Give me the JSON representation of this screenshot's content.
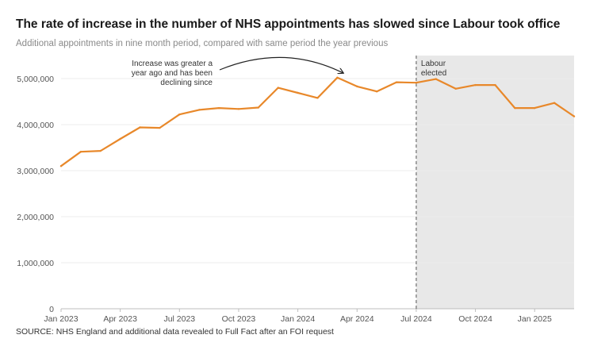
{
  "chart_data": {
    "type": "line",
    "title": "The rate of increase in the number of NHS appointments has slowed since Labour took office",
    "subtitle": "Additional appointments in nine month period, compared with same period the year previous",
    "source": "SOURCE: NHS England and additional data revealed to Full Fact after an FOI request",
    "x": [
      "2023-01",
      "2023-02",
      "2023-03",
      "2023-04",
      "2023-05",
      "2023-06",
      "2023-07",
      "2023-08",
      "2023-09",
      "2023-10",
      "2023-11",
      "2023-12",
      "2024-01",
      "2024-02",
      "2024-03",
      "2024-04",
      "2024-05",
      "2024-06",
      "2024-07",
      "2024-08",
      "2024-09",
      "2024-10",
      "2024-11",
      "2024-12",
      "2025-01",
      "2025-02",
      "2025-03"
    ],
    "series": [
      {
        "values": [
          3100000,
          3410000,
          3430000,
          3690000,
          3940000,
          3930000,
          4220000,
          4320000,
          4360000,
          4340000,
          4370000,
          4800000,
          4690000,
          4580000,
          5020000,
          4830000,
          4720000,
          4920000,
          4910000,
          4990000,
          4780000,
          4860000,
          4860000,
          4360000,
          4360000,
          4470000,
          4180000
        ],
        "color": "#e8882a"
      }
    ],
    "ylim": [
      0,
      5500000
    ],
    "yticks": [
      0,
      1000000,
      2000000,
      3000000,
      4000000,
      5000000
    ],
    "ytick_labels": [
      "0",
      "1,000,000",
      "2,000,000",
      "3,000,000",
      "4,000,000",
      "5,000,000"
    ],
    "xticks": [
      {
        "x": "2023-01",
        "label": "Jan 2023"
      },
      {
        "x": "2023-04",
        "label": "Apr 2023"
      },
      {
        "x": "2023-07",
        "label": "Jul 2023"
      },
      {
        "x": "2023-10",
        "label": "Oct 2023"
      },
      {
        "x": "2024-01",
        "label": "Jan 2024"
      },
      {
        "x": "2024-04",
        "label": "Apr 2024"
      },
      {
        "x": "2024-07",
        "label": "Jul 2024"
      },
      {
        "x": "2024-10",
        "label": "Oct 2024"
      },
      {
        "x": "2025-01",
        "label": "Jan 2025"
      }
    ],
    "grid": true,
    "shaded_region": {
      "from": "2024-07",
      "to": "2025-03",
      "label": [
        "Labour",
        "elected"
      ],
      "color": "#e8e8e8"
    },
    "annotation": {
      "lines": [
        "Increase was greater a",
        "year ago and has been",
        "declining since"
      ],
      "points_to": "2024-03"
    }
  }
}
